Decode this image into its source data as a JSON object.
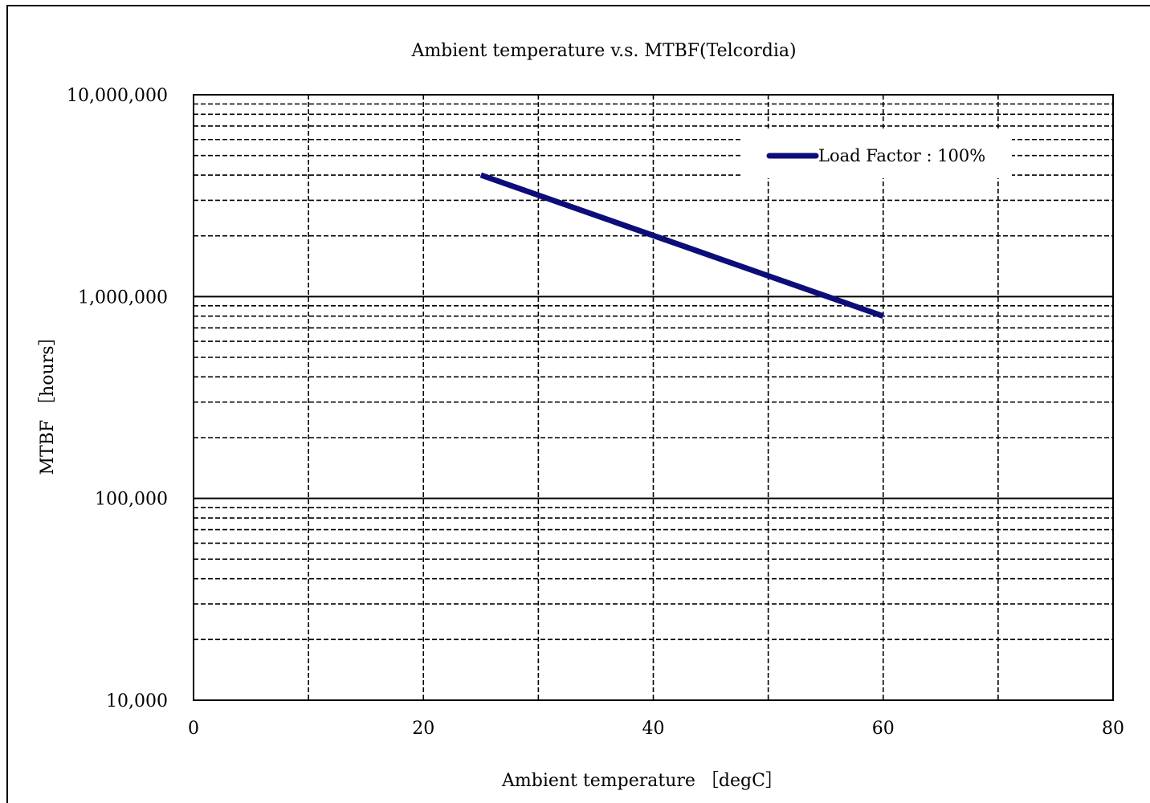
{
  "chart_data": {
    "type": "line",
    "title": "Ambient temperature  v.s.  MTBF(Telcordia)",
    "xlabel": "Ambient temperature ［degC］",
    "ylabel": "MTBF ［hours］",
    "x_scale": "linear",
    "y_scale": "log",
    "xlim": [
      0,
      80
    ],
    "ylim": [
      10000,
      10000000
    ],
    "x_ticks": [
      0,
      20,
      40,
      60,
      80
    ],
    "x_tick_labels": [
      "0",
      "20",
      "40",
      "60",
      "80"
    ],
    "y_ticks": [
      10000,
      100000,
      1000000,
      10000000
    ],
    "y_tick_labels": [
      "10,000",
      "100,000",
      "1,000,000",
      "10,000,000"
    ],
    "x_minor_gridlines": [
      10,
      20,
      30,
      40,
      50,
      60,
      70
    ],
    "grid": true,
    "legend_position": "top-right",
    "series": [
      {
        "name": "Load Factor : 100%",
        "color": "#0d0d7a",
        "x": [
          25,
          60
        ],
        "y": [
          4000000,
          800000
        ]
      }
    ]
  }
}
